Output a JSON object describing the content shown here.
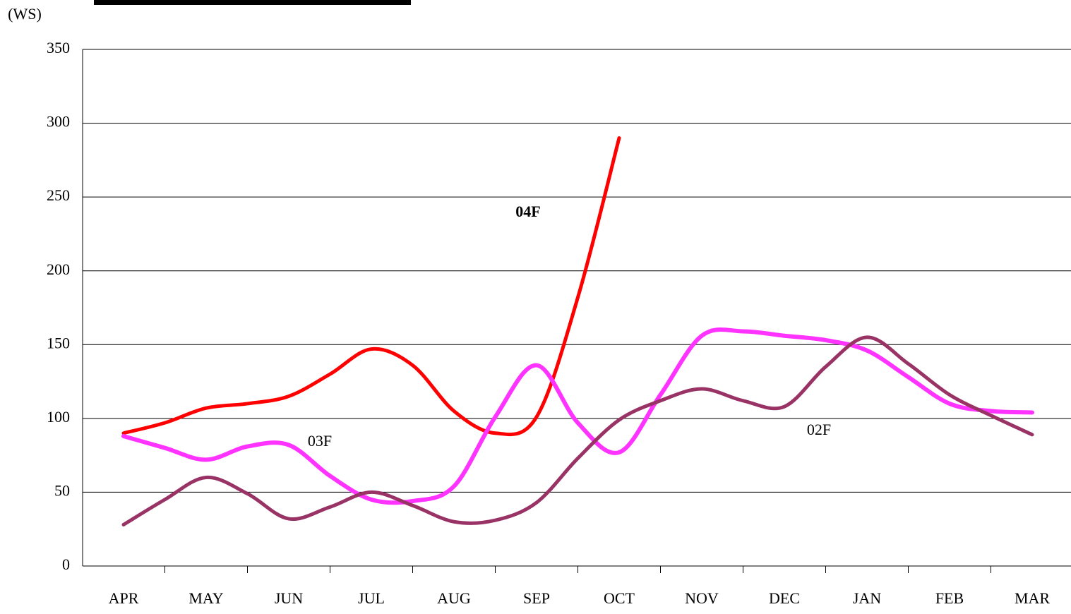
{
  "chart_data": {
    "type": "line",
    "y_label": "(WS)",
    "categories": [
      "APR",
      null,
      "MAY",
      null,
      "JUN",
      null,
      "JUL",
      null,
      "AUG",
      null,
      "SEP",
      null,
      "OCT",
      null,
      "NOV",
      null,
      "DEC",
      null,
      "JAN",
      null,
      "FEB",
      null,
      "MAR"
    ],
    "series": [
      {
        "name": "04F",
        "color": "#ff0000",
        "values": [
          90,
          97,
          107,
          110,
          115,
          130,
          147,
          136,
          105,
          90,
          101,
          182,
          290,
          null,
          null,
          null,
          null,
          null,
          null,
          null,
          null,
          null,
          null
        ]
      },
      {
        "name": "03F",
        "color": "#ff33ff",
        "values": [
          88,
          80,
          72,
          81,
          82,
          61,
          45,
          44,
          54,
          101,
          136,
          97,
          77,
          116,
          156,
          159,
          156,
          153,
          146,
          128,
          110,
          105,
          104
        ]
      },
      {
        "name": "02F",
        "color": "#993366",
        "values": [
          28,
          45,
          60,
          49,
          32,
          40,
          50,
          41,
          30,
          31,
          43,
          73,
          99,
          112,
          120,
          112,
          108,
          135,
          155,
          137,
          116,
          102,
          89
        ]
      }
    ],
    "annotations": [
      "04F",
      "03F",
      "02F"
    ],
    "ylim": [
      0,
      350
    ],
    "yticks": [
      0,
      50,
      100,
      150,
      200,
      250,
      300,
      350
    ],
    "grid": true
  }
}
